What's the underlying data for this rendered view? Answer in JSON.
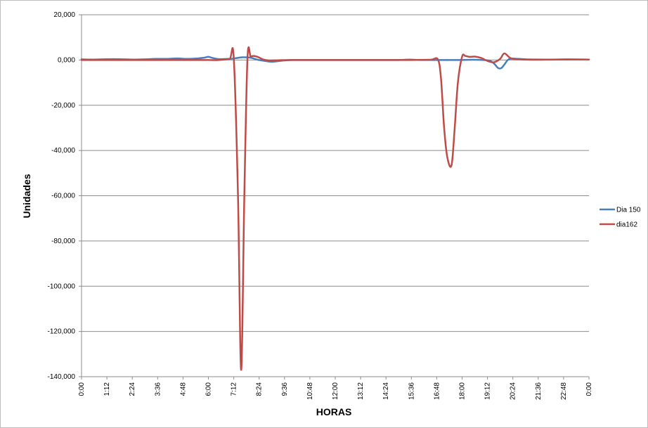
{
  "chart_data": {
    "type": "line",
    "title": "",
    "xlabel": "HORAS",
    "ylabel": "Unidades",
    "ylim": [
      -140000,
      20000
    ],
    "y_ticks": [
      20000,
      0,
      -20000,
      -40000,
      -60000,
      -80000,
      -100000,
      -120000,
      -140000
    ],
    "y_tick_labels": [
      "20,000",
      "0,000",
      "-20,000",
      "-40,000",
      "-60,000",
      "-80,000",
      "-100,000",
      "-120,000",
      "-140,000"
    ],
    "x_unit": "hours",
    "xlim": [
      0,
      24
    ],
    "x_ticks": [
      0,
      1.2,
      2.4,
      3.6,
      4.8,
      6,
      7.2,
      8.4,
      9.6,
      10.8,
      12,
      13.2,
      14.4,
      15.6,
      16.8,
      18,
      19.2,
      20.4,
      21.6,
      22.8,
      24
    ],
    "x_tick_labels": [
      "0:00",
      "1:12",
      "2:24",
      "3:36",
      "4:48",
      "6:00",
      "7:12",
      "8:24",
      "9:36",
      "10:48",
      "12:00",
      "13:12",
      "14:24",
      "15:36",
      "16:48",
      "18:00",
      "19:12",
      "20:24",
      "21:36",
      "22:48",
      "0:00"
    ],
    "grid": "horizontal",
    "legend": "right",
    "series": [
      {
        "name": "Dia 150",
        "color": "#4a7ebb",
        "x": [
          0,
          0.5,
          1.0,
          1.5,
          2.0,
          2.5,
          3.0,
          3.5,
          4.0,
          4.5,
          5.0,
          5.5,
          5.8,
          6.0,
          6.2,
          6.5,
          7.0,
          7.3,
          7.6,
          8.0,
          8.3,
          8.6,
          9.0,
          9.3,
          9.6,
          10,
          11,
          12,
          13,
          14,
          15,
          15.5,
          16,
          17,
          18,
          18.5,
          19.0,
          19.3,
          19.5,
          19.7,
          19.85,
          20.0,
          20.2,
          20.5,
          21,
          22,
          23,
          24
        ],
        "values": [
          300,
          200,
          300,
          400,
          300,
          200,
          300,
          500,
          500,
          700,
          500,
          700,
          1000,
          1400,
          900,
          400,
          500,
          800,
          1200,
          1000,
          200,
          -300,
          -800,
          -500,
          -200,
          0,
          0,
          0,
          0,
          0,
          0,
          200,
          0,
          0,
          0,
          100,
          0,
          -300,
          -1500,
          -3500,
          -3600,
          -2000,
          300,
          600,
          300,
          200,
          300,
          200
        ]
      },
      {
        "name": "dia162",
        "color": "#be4b48",
        "x": [
          0,
          1.0,
          2.0,
          3.0,
          4.0,
          5.0,
          6.0,
          6.5,
          7.0,
          7.2,
          7.4,
          7.55,
          7.7,
          7.85,
          8.0,
          8.15,
          8.35,
          8.6,
          8.9,
          9.3,
          10,
          12,
          14,
          15.5,
          16.5,
          16.85,
          17.0,
          17.15,
          17.3,
          17.5,
          17.65,
          17.8,
          18.0,
          18.15,
          18.35,
          18.6,
          18.9,
          19.2,
          19.5,
          19.8,
          20.0,
          20.3,
          20.7,
          21.5,
          22.5,
          24
        ],
        "values": [
          0,
          0,
          0,
          0,
          0,
          0,
          0,
          0,
          500,
          900,
          -60000,
          -137000,
          -60000,
          1000,
          1500,
          1800,
          1300,
          200,
          -200,
          -100,
          0,
          0,
          0,
          0,
          100,
          300,
          -8000,
          -30000,
          -43000,
          -46500,
          -30000,
          -10000,
          1500,
          1800,
          1400,
          1500,
          900,
          -400,
          -1000,
          500,
          2900,
          800,
          300,
          100,
          200,
          200
        ]
      }
    ]
  }
}
